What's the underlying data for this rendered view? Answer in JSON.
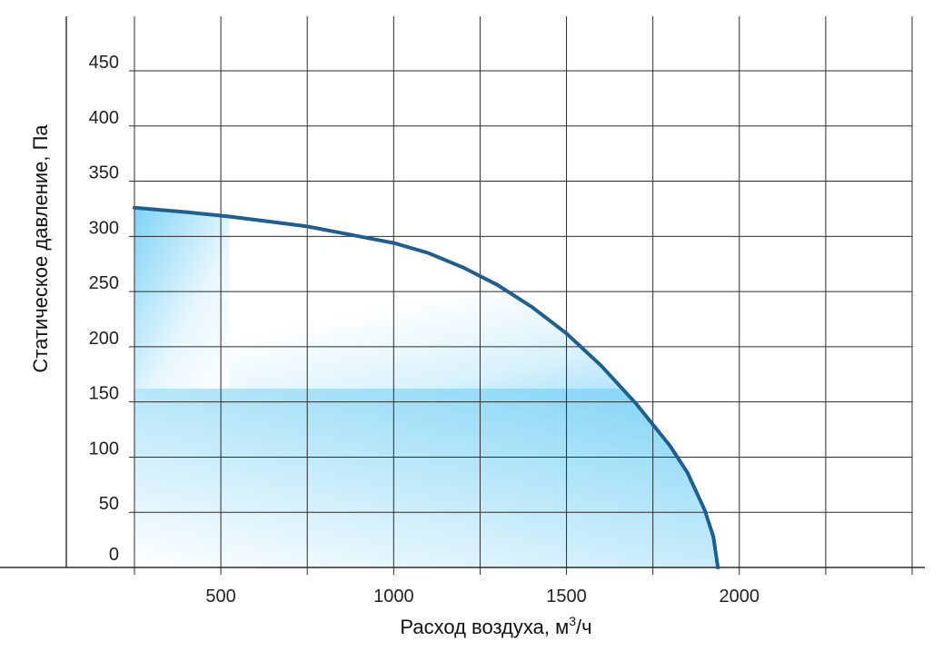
{
  "chart_data": {
    "type": "line",
    "xlabel_main": "Расход воздуха, м",
    "xlabel_sup": "3",
    "xlabel_tail": "/ч",
    "ylabel": "Статическое давление, Па",
    "xlim": [
      250,
      2500
    ],
    "ylim": [
      0,
      500
    ],
    "x_ticks": [
      250,
      500,
      750,
      1000,
      1250,
      1500,
      1750,
      2000,
      2250,
      2500
    ],
    "x_tick_labels": [
      {
        "value": 500,
        "label": "500"
      },
      {
        "value": 1000,
        "label": "1000"
      },
      {
        "value": 1500,
        "label": "1500"
      },
      {
        "value": 2000,
        "label": "2000"
      }
    ],
    "y_ticks": [
      0,
      50,
      100,
      150,
      200,
      250,
      300,
      350,
      400,
      450
    ],
    "y_tick_labels": [
      "0",
      "50",
      "100",
      "150",
      "200",
      "250",
      "300",
      "350",
      "400",
      "450"
    ],
    "grid": true,
    "series": [
      {
        "color": "#1f5f8f",
        "points": [
          [
            250,
            326
          ],
          [
            400,
            322
          ],
          [
            525,
            318
          ],
          [
            650,
            313
          ],
          [
            750,
            309
          ],
          [
            900,
            300
          ],
          [
            1000,
            294
          ],
          [
            1100,
            285
          ],
          [
            1200,
            272
          ],
          [
            1300,
            256
          ],
          [
            1400,
            236
          ],
          [
            1500,
            212
          ],
          [
            1600,
            183
          ],
          [
            1700,
            149
          ],
          [
            1800,
            110
          ],
          [
            1850,
            86
          ],
          [
            1900,
            52
          ],
          [
            1925,
            28
          ],
          [
            1938,
            0
          ]
        ]
      }
    ],
    "shaded_region": {
      "fill_color": "#6dcdf4",
      "x_split": 525,
      "y_split": 162,
      "description_note": ""
    }
  }
}
